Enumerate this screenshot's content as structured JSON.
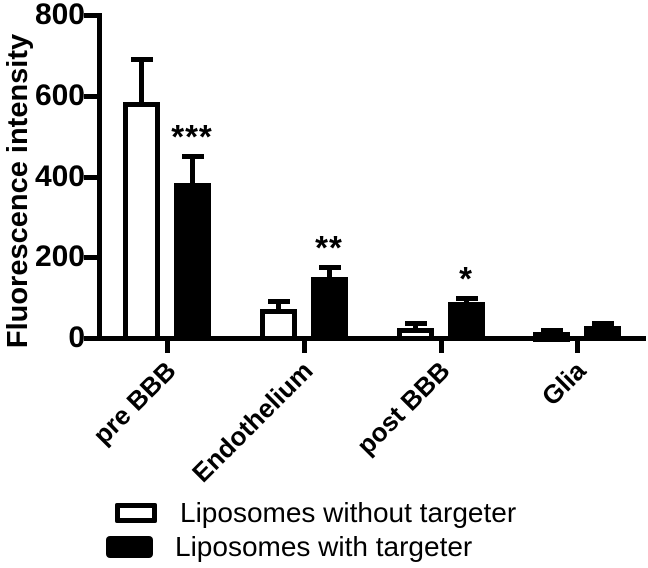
{
  "chart_data": {
    "type": "bar",
    "title": "",
    "ylabel": "Fluorescence intensity",
    "xlabel": "",
    "ylim": [
      0,
      800
    ],
    "yticks": [
      800,
      600,
      400,
      200,
      0
    ],
    "categories": [
      "pre BBB",
      "Endothelium",
      "post BBB",
      "Glia"
    ],
    "series": [
      {
        "name": "Liposomes without targeter",
        "swatch": "open",
        "fill": "#ffffff",
        "outline": "#000000",
        "values": [
          585,
          72,
          25,
          15
        ],
        "errors_plus": [
          105,
          20,
          13,
          5
        ]
      },
      {
        "name": "Liposomes with targeter",
        "swatch": "filled",
        "fill": "#000000",
        "outline": "#000000",
        "values": [
          385,
          152,
          88,
          30
        ],
        "errors_plus": [
          65,
          25,
          12,
          8
        ]
      }
    ],
    "significance_labels": [
      "***",
      "**",
      "*",
      ""
    ],
    "significance_on_series": "Liposomes with targeter",
    "error_bar_style": "upper-only T-cap",
    "legend_position": "bottom-left",
    "grid": false,
    "background": "#ffffff",
    "ink": "#000000"
  }
}
